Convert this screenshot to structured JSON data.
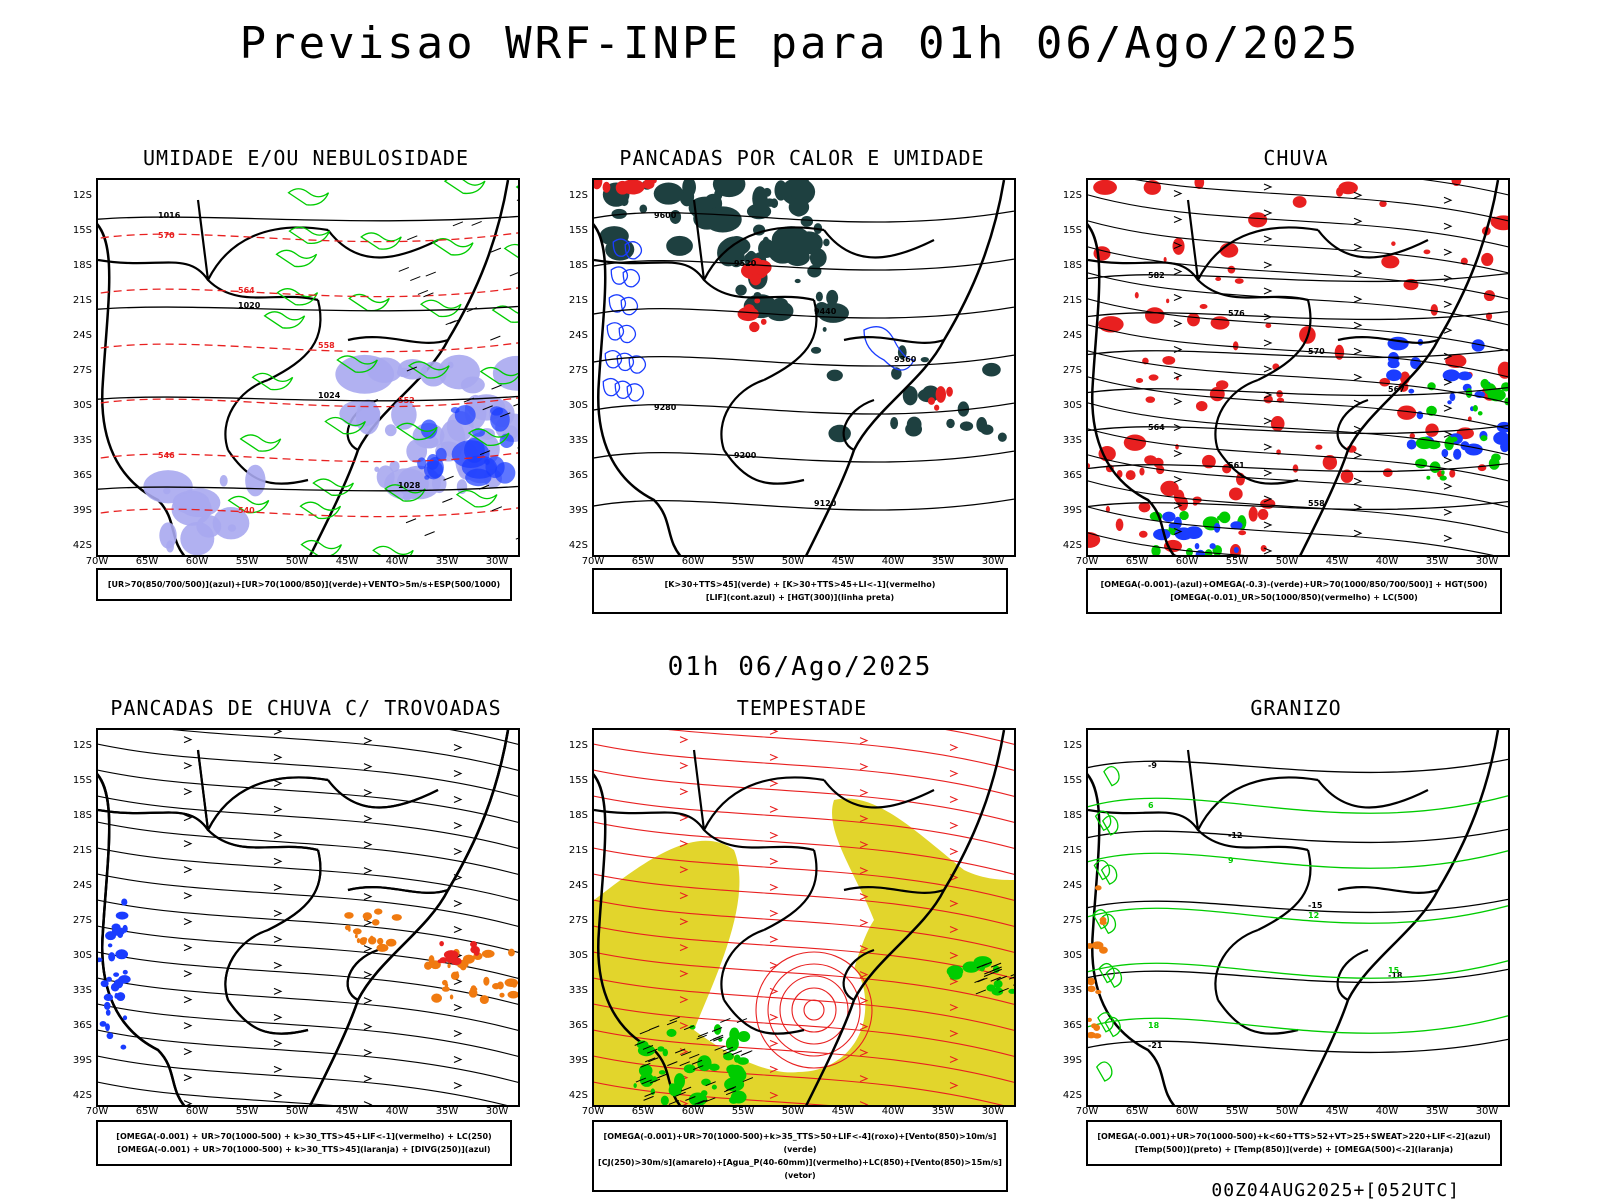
{
  "title": "Previsao WRF-INPE  para 01h 06/Ago/2025",
  "mid_date": "01h 06/Ago/2025",
  "footer": "00Z04AUG2025+[052UTC]",
  "axes": {
    "y": [
      "12S",
      "15S",
      "18S",
      "21S",
      "24S",
      "27S",
      "30S",
      "33S",
      "36S",
      "39S",
      "42S"
    ],
    "x": [
      "70W",
      "65W",
      "60W",
      "55W",
      "50W",
      "45W",
      "40W",
      "35W",
      "30W"
    ]
  },
  "panels": [
    {
      "title": "UMIDADE E/OU NEBULOSIDADE",
      "legend": [
        "[UR>70(850/700/500)](azul)+[UR>70(1000/850)](verde)+VENTO>5m/s+ESP(500/1000)"
      ],
      "contours": [
        "1016",
        "1020",
        "1024",
        "1028",
        "570",
        "564",
        "558",
        "552",
        "546",
        "540"
      ]
    },
    {
      "title": "PANCADAS POR CALOR E UMIDADE",
      "legend": [
        "[K>30+TTS>45](verde) + [K>30+TTS>45+LI<-1](vermelho)",
        "[LIF](cont.azul) + [HGT(300)](linha preta)"
      ],
      "contours": [
        "9600",
        "9520",
        "9440",
        "9360",
        "9280",
        "9200",
        "9120"
      ]
    },
    {
      "title": "CHUVA",
      "legend": [
        "[OMEGA(-0.001)-(azul)+OMEGA(-0.3)-(verde)+UR>70(1000/850/700/500)] + HGT(500)",
        "[OMEGA(-0.01)_UR>50(1000/850)(vermelho) + LC(500)"
      ],
      "contours": [
        "582",
        "576",
        "570",
        "567",
        "564",
        "561",
        "558"
      ]
    },
    {
      "title": "PANCADAS DE CHUVA C/ TROVOADAS",
      "legend": [
        "[OMEGA(-0.001) + UR>70(1000-500) + k>30_TTS>45+LIF<-1](vermelho) + LC(250)",
        "[OMEGA(-0.001) + UR>70(1000-500) + k>30_TTS>45](laranja) + [DIVG(250)](azul)"
      ],
      "contours": []
    },
    {
      "title": "TEMPESTADE",
      "legend": [
        "[OMEGA(-0.001)+UR>70(1000-500)+k>35_TTS>50+LIF<-4](roxo)+[Vento(850)>10m/s](verde)",
        "[CJ(250)>30m/s](amarelo)+[Agua_P(40-60mm)](vermelho)+LC(850)+[Vento(850)>15m/s](vetor)"
      ],
      "contours": []
    },
    {
      "title": "GRANIZO",
      "legend": [
        "[OMEGA(-0.001)+UR>70(1000-500)+k<60+TTS>52+VT>25+SWEAT>220+LIF<-2](azul)",
        "[Temp(500)](preto) + [Temp(850)](verde) + [OMEGA(500)<-2](laranja)"
      ],
      "contours": [
        "-9",
        "-12",
        "-15",
        "-18",
        "-21",
        "6",
        "9",
        "12",
        "15",
        "18"
      ]
    }
  ],
  "colors": {
    "green": "#00cc00",
    "red": "#e82020",
    "blue": "#1a3cff",
    "lavender": "#a8a8f0",
    "darkteal": "#1e4040",
    "yellow": "#e2d52c",
    "orange": "#f07a10",
    "black": "#000000"
  }
}
